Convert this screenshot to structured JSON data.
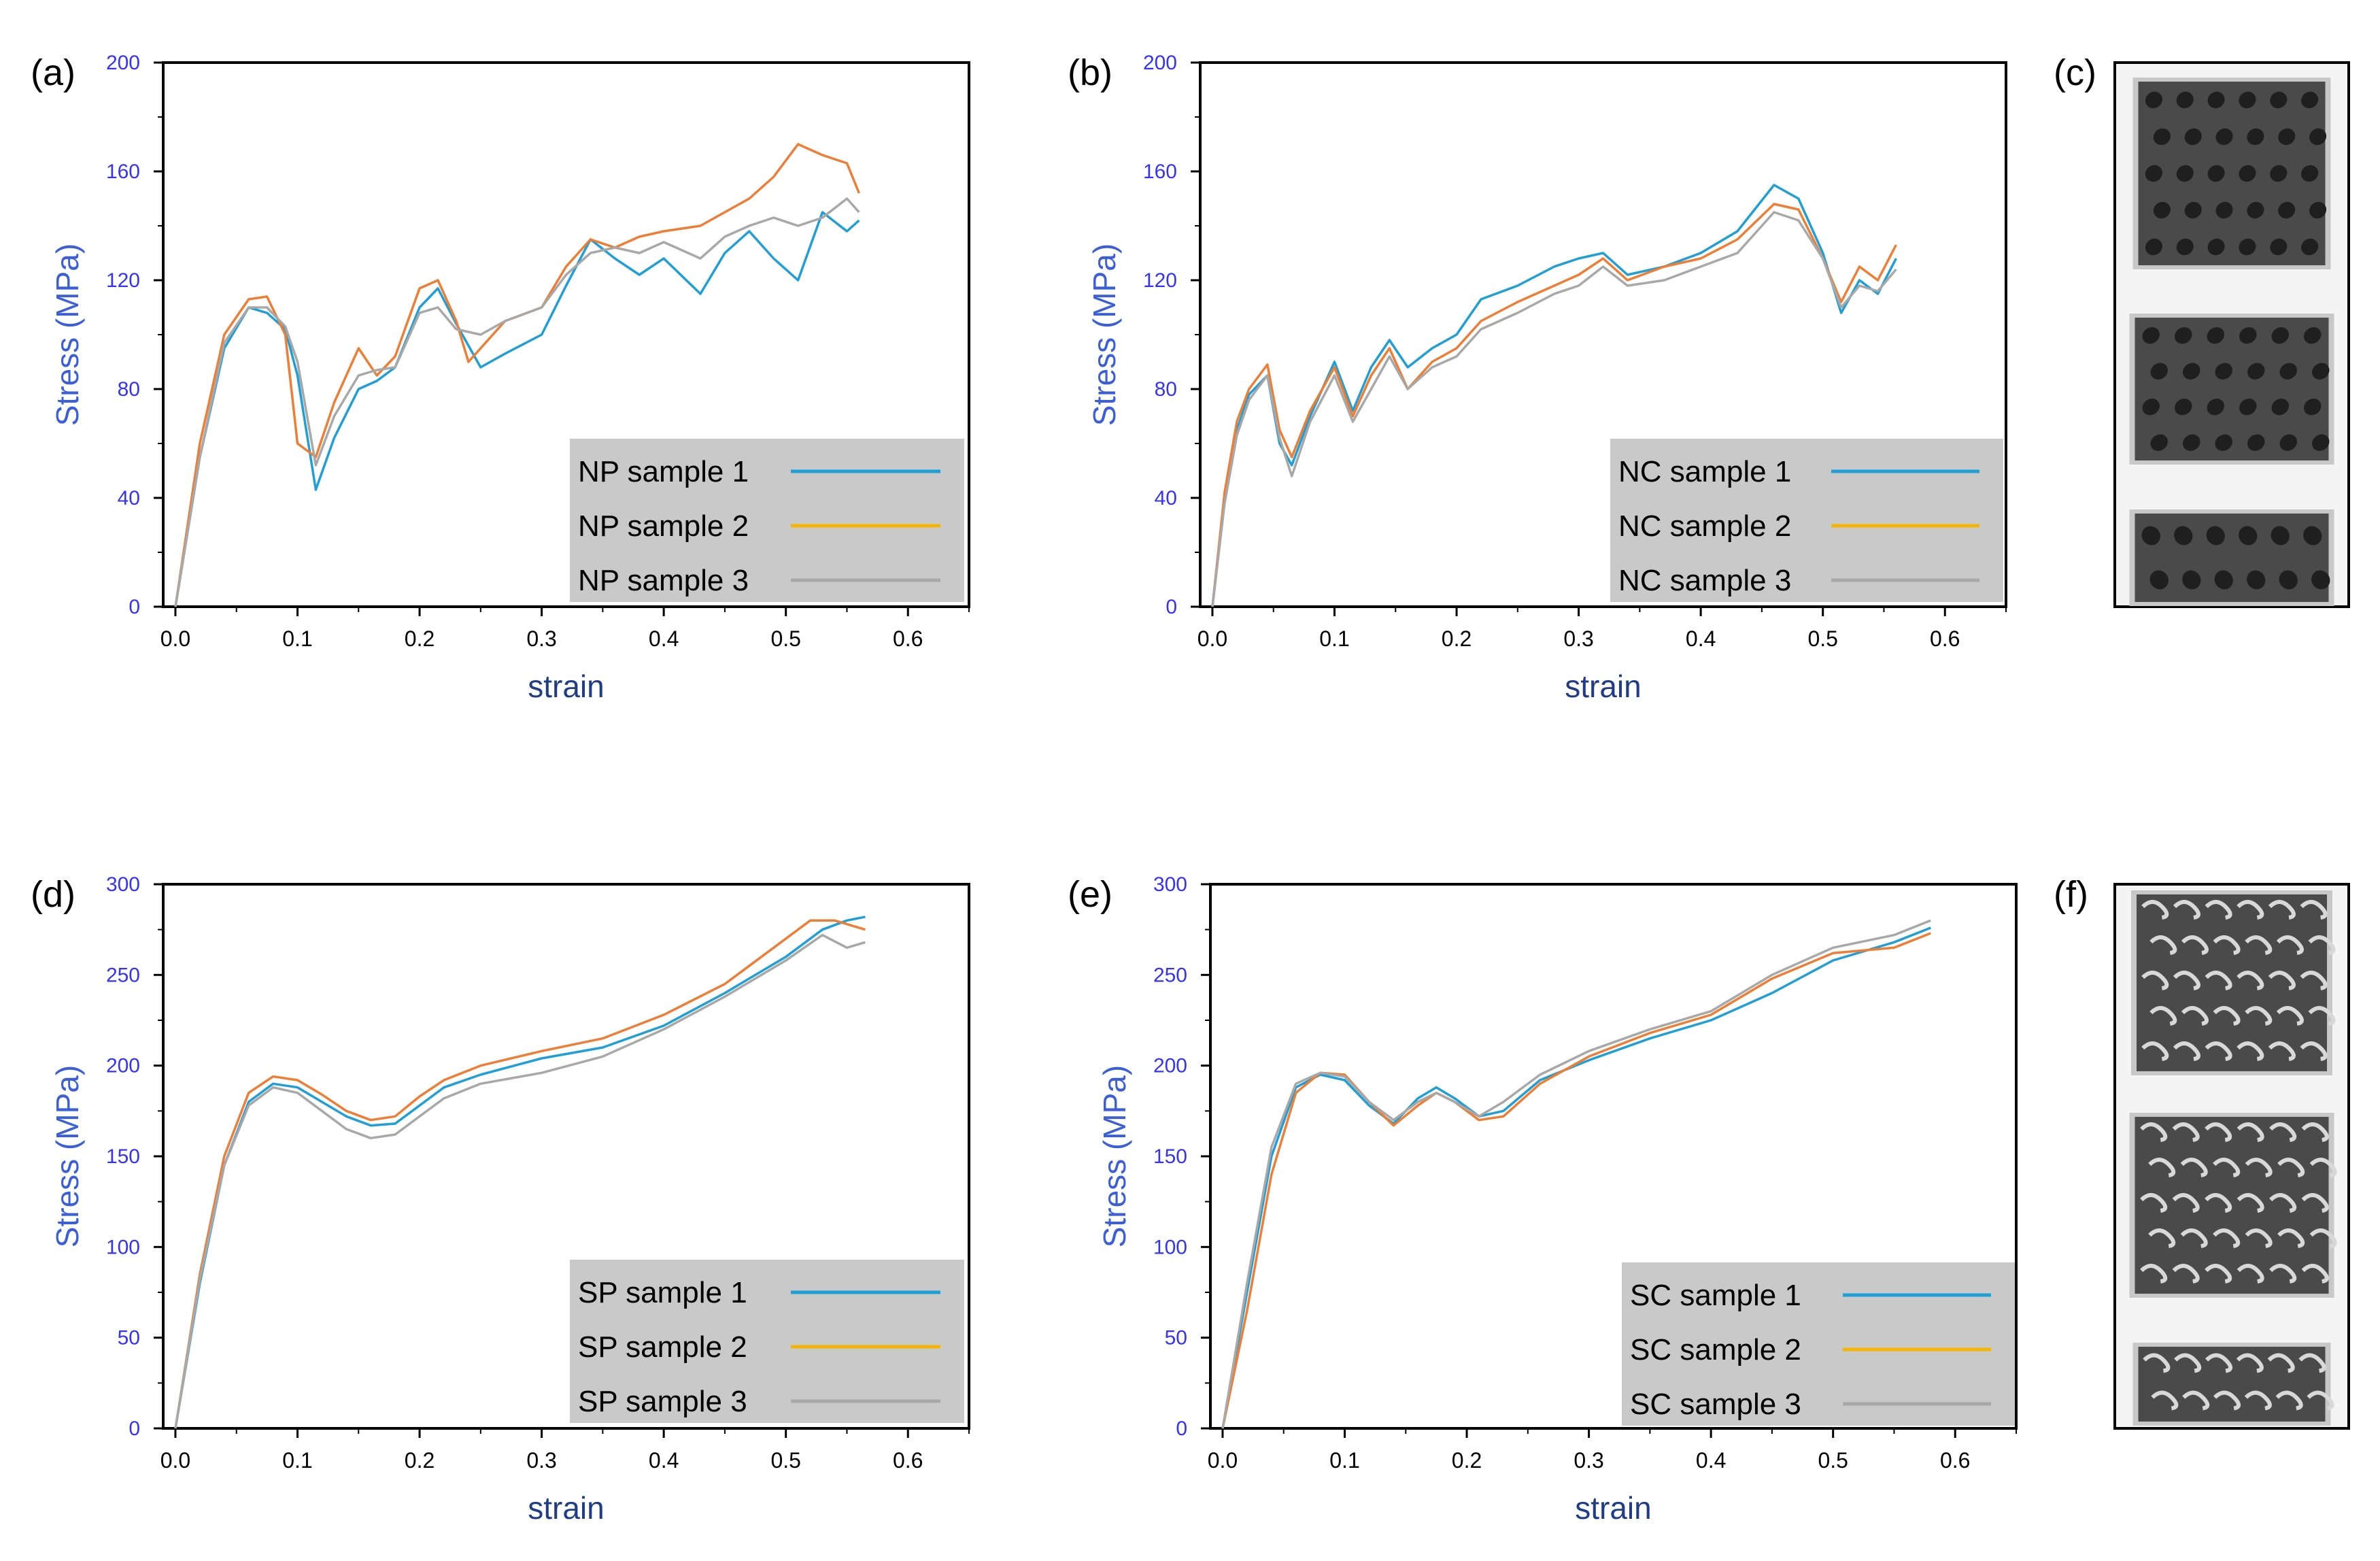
{
  "figure": {
    "colors": {
      "axis": "#000000",
      "tick_label": "#3333ff",
      "ylabel": "#3a5fd9",
      "xlabel": "#1f3c88",
      "legend_bg": "#c9c9c9",
      "series1": "#1e9fd8",
      "series2": "#ef7d34",
      "series2_legend": "#f5b400",
      "series3": "#a8a8a8",
      "photo_bg": "#c8c8c8"
    },
    "photo_panels": [
      {
        "label": "(c)",
        "name": "photo-panel-c",
        "style": "lattice"
      },
      {
        "label": "(f)",
        "name": "photo-panel-f",
        "style": "gyroid"
      }
    ]
  },
  "chart_data": [
    {
      "panel": "(a)",
      "type": "line",
      "title": "",
      "xlabel": "strain",
      "ylabel": "Stress (MPa)",
      "xlim": [
        -0.01,
        0.65
      ],
      "ylim": [
        0,
        200
      ],
      "xticks": [
        "0.0",
        "0.1",
        "0.2",
        "0.3",
        "0.4",
        "0.5",
        "0.6"
      ],
      "yticks": [
        "0",
        "40",
        "80",
        "120",
        "160",
        "200"
      ],
      "legend_position": "bottom-right",
      "series": [
        {
          "name": "NP sample 1",
          "x": [
            0,
            0.02,
            0.04,
            0.06,
            0.075,
            0.09,
            0.1,
            0.115,
            0.13,
            0.15,
            0.165,
            0.18,
            0.2,
            0.215,
            0.23,
            0.25,
            0.27,
            0.3,
            0.32,
            0.34,
            0.36,
            0.38,
            0.4,
            0.43,
            0.45,
            0.47,
            0.49,
            0.51,
            0.53,
            0.55,
            0.56
          ],
          "values": [
            0,
            55,
            95,
            110,
            108,
            102,
            85,
            43,
            62,
            80,
            83,
            88,
            110,
            117,
            104,
            88,
            93,
            100,
            118,
            135,
            128,
            122,
            128,
            115,
            130,
            138,
            128,
            120,
            145,
            138,
            142
          ]
        },
        {
          "name": "NP sample 2",
          "x": [
            0,
            0.02,
            0.04,
            0.06,
            0.075,
            0.09,
            0.1,
            0.115,
            0.13,
            0.15,
            0.165,
            0.18,
            0.2,
            0.215,
            0.23,
            0.24,
            0.27,
            0.3,
            0.32,
            0.34,
            0.36,
            0.38,
            0.4,
            0.43,
            0.45,
            0.47,
            0.49,
            0.51,
            0.53,
            0.55,
            0.56
          ],
          "values": [
            0,
            60,
            100,
            113,
            114,
            100,
            60,
            55,
            75,
            95,
            85,
            92,
            117,
            120,
            105,
            90,
            105,
            110,
            125,
            135,
            132,
            136,
            138,
            140,
            145,
            150,
            158,
            170,
            166,
            163,
            152
          ]
        },
        {
          "name": "NP sample 3",
          "x": [
            0,
            0.02,
            0.04,
            0.06,
            0.075,
            0.09,
            0.1,
            0.115,
            0.13,
            0.15,
            0.165,
            0.18,
            0.2,
            0.215,
            0.23,
            0.25,
            0.27,
            0.3,
            0.32,
            0.34,
            0.36,
            0.38,
            0.4,
            0.43,
            0.45,
            0.47,
            0.49,
            0.51,
            0.53,
            0.55,
            0.56
          ],
          "values": [
            0,
            55,
            97,
            110,
            110,
            103,
            90,
            52,
            70,
            85,
            87,
            88,
            108,
            110,
            102,
            100,
            105,
            110,
            122,
            130,
            132,
            130,
            134,
            128,
            136,
            140,
            143,
            140,
            143,
            150,
            145
          ]
        }
      ]
    },
    {
      "panel": "(b)",
      "type": "line",
      "title": "",
      "xlabel": "strain",
      "ylabel": "Stress (MPa)",
      "xlim": [
        -0.01,
        0.65
      ],
      "ylim": [
        0,
        200
      ],
      "xticks": [
        "0.0",
        "0.1",
        "0.2",
        "0.3",
        "0.4",
        "0.5",
        "0.6"
      ],
      "yticks": [
        "0",
        "40",
        "80",
        "120",
        "160",
        "200"
      ],
      "legend_position": "bottom-right",
      "series": [
        {
          "name": "NC sample 1",
          "x": [
            0,
            0.01,
            0.02,
            0.03,
            0.045,
            0.055,
            0.065,
            0.08,
            0.1,
            0.115,
            0.13,
            0.145,
            0.16,
            0.18,
            0.2,
            0.22,
            0.25,
            0.28,
            0.3,
            0.32,
            0.34,
            0.37,
            0.4,
            0.43,
            0.46,
            0.48,
            0.5,
            0.515,
            0.53,
            0.545,
            0.56
          ],
          "values": [
            0,
            40,
            65,
            78,
            85,
            60,
            52,
            70,
            90,
            72,
            88,
            98,
            88,
            95,
            100,
            113,
            118,
            125,
            128,
            130,
            122,
            125,
            130,
            138,
            155,
            150,
            130,
            108,
            120,
            115,
            128
          ]
        },
        {
          "name": "NC sample 2",
          "x": [
            0,
            0.01,
            0.02,
            0.03,
            0.045,
            0.055,
            0.065,
            0.08,
            0.1,
            0.115,
            0.13,
            0.145,
            0.16,
            0.18,
            0.2,
            0.22,
            0.25,
            0.28,
            0.3,
            0.32,
            0.34,
            0.37,
            0.4,
            0.43,
            0.46,
            0.48,
            0.5,
            0.515,
            0.53,
            0.545,
            0.56
          ],
          "values": [
            0,
            42,
            68,
            80,
            89,
            65,
            55,
            72,
            88,
            70,
            85,
            95,
            80,
            90,
            95,
            105,
            112,
            118,
            122,
            128,
            120,
            125,
            128,
            135,
            148,
            146,
            128,
            112,
            125,
            120,
            133
          ]
        },
        {
          "name": "NC sample 3",
          "x": [
            0,
            0.01,
            0.02,
            0.03,
            0.045,
            0.055,
            0.065,
            0.08,
            0.1,
            0.115,
            0.13,
            0.145,
            0.16,
            0.18,
            0.2,
            0.22,
            0.25,
            0.28,
            0.3,
            0.32,
            0.34,
            0.37,
            0.4,
            0.43,
            0.46,
            0.48,
            0.5,
            0.515,
            0.53,
            0.545,
            0.56
          ],
          "values": [
            0,
            38,
            63,
            76,
            85,
            62,
            48,
            68,
            85,
            68,
            80,
            92,
            80,
            88,
            92,
            102,
            108,
            115,
            118,
            125,
            118,
            120,
            125,
            130,
            145,
            142,
            128,
            110,
            118,
            116,
            124
          ]
        }
      ]
    },
    {
      "panel": "(d)",
      "type": "line",
      "title": "",
      "xlabel": "strain",
      "ylabel": "Stress (MPa)",
      "xlim": [
        -0.01,
        0.65
      ],
      "ylim": [
        0,
        300
      ],
      "xticks": [
        "0.0",
        "0.1",
        "0.2",
        "0.3",
        "0.4",
        "0.5",
        "0.6"
      ],
      "yticks": [
        "0",
        "50",
        "100",
        "150",
        "200",
        "250",
        "300"
      ],
      "legend_position": "bottom-right",
      "series": [
        {
          "name": "SP sample 1",
          "x": [
            0,
            0.02,
            0.04,
            0.06,
            0.08,
            0.1,
            0.12,
            0.14,
            0.16,
            0.18,
            0.2,
            0.22,
            0.25,
            0.3,
            0.35,
            0.4,
            0.45,
            0.5,
            0.53,
            0.55,
            0.565
          ],
          "values": [
            0,
            80,
            145,
            180,
            190,
            188,
            180,
            172,
            167,
            168,
            178,
            188,
            195,
            204,
            210,
            222,
            240,
            260,
            275,
            280,
            282
          ]
        },
        {
          "name": "SP sample 2",
          "x": [
            0,
            0.02,
            0.04,
            0.06,
            0.08,
            0.1,
            0.12,
            0.14,
            0.16,
            0.18,
            0.2,
            0.22,
            0.25,
            0.3,
            0.35,
            0.4,
            0.45,
            0.5,
            0.52,
            0.54,
            0.565
          ],
          "values": [
            0,
            85,
            150,
            185,
            194,
            192,
            184,
            175,
            170,
            172,
            183,
            192,
            200,
            208,
            215,
            228,
            245,
            270,
            280,
            280,
            275
          ]
        },
        {
          "name": "SP sample 3",
          "x": [
            0,
            0.02,
            0.04,
            0.06,
            0.08,
            0.1,
            0.12,
            0.14,
            0.16,
            0.18,
            0.2,
            0.22,
            0.25,
            0.3,
            0.35,
            0.4,
            0.45,
            0.5,
            0.53,
            0.55,
            0.565
          ],
          "values": [
            0,
            82,
            145,
            178,
            188,
            185,
            175,
            165,
            160,
            162,
            172,
            182,
            190,
            196,
            205,
            220,
            238,
            258,
            272,
            265,
            268
          ]
        }
      ]
    },
    {
      "panel": "(e)",
      "type": "line",
      "title": "",
      "xlabel": "strain",
      "ylabel": "Stress (MPa)",
      "xlim": [
        -0.01,
        0.65
      ],
      "ylim": [
        0,
        300
      ],
      "xticks": [
        "0.0",
        "0.1",
        "0.2",
        "0.3",
        "0.4",
        "0.5",
        "0.6"
      ],
      "yticks": [
        "0",
        "50",
        "100",
        "150",
        "200",
        "250",
        "300"
      ],
      "legend_position": "bottom-right",
      "series": [
        {
          "name": "SC sample 1",
          "x": [
            0,
            0.02,
            0.04,
            0.06,
            0.08,
            0.1,
            0.12,
            0.14,
            0.16,
            0.175,
            0.19,
            0.21,
            0.23,
            0.26,
            0.3,
            0.35,
            0.4,
            0.45,
            0.5,
            0.55,
            0.58
          ],
          "values": [
            0,
            75,
            150,
            188,
            195,
            192,
            178,
            168,
            182,
            188,
            182,
            172,
            175,
            192,
            203,
            215,
            225,
            240,
            258,
            268,
            276
          ]
        },
        {
          "name": "SC sample 2",
          "x": [
            0,
            0.02,
            0.04,
            0.06,
            0.08,
            0.1,
            0.12,
            0.14,
            0.16,
            0.175,
            0.19,
            0.21,
            0.23,
            0.26,
            0.3,
            0.35,
            0.4,
            0.45,
            0.5,
            0.55,
            0.58
          ],
          "values": [
            0,
            65,
            140,
            185,
            196,
            195,
            180,
            167,
            178,
            185,
            180,
            170,
            172,
            190,
            205,
            218,
            228,
            248,
            262,
            265,
            273
          ]
        },
        {
          "name": "SC sample 3",
          "x": [
            0,
            0.02,
            0.04,
            0.06,
            0.08,
            0.1,
            0.12,
            0.14,
            0.16,
            0.175,
            0.19,
            0.21,
            0.23,
            0.26,
            0.3,
            0.35,
            0.4,
            0.45,
            0.5,
            0.55,
            0.58
          ],
          "values": [
            0,
            80,
            155,
            190,
            196,
            194,
            180,
            170,
            180,
            185,
            180,
            172,
            180,
            195,
            208,
            220,
            230,
            250,
            265,
            272,
            280
          ]
        }
      ]
    }
  ]
}
